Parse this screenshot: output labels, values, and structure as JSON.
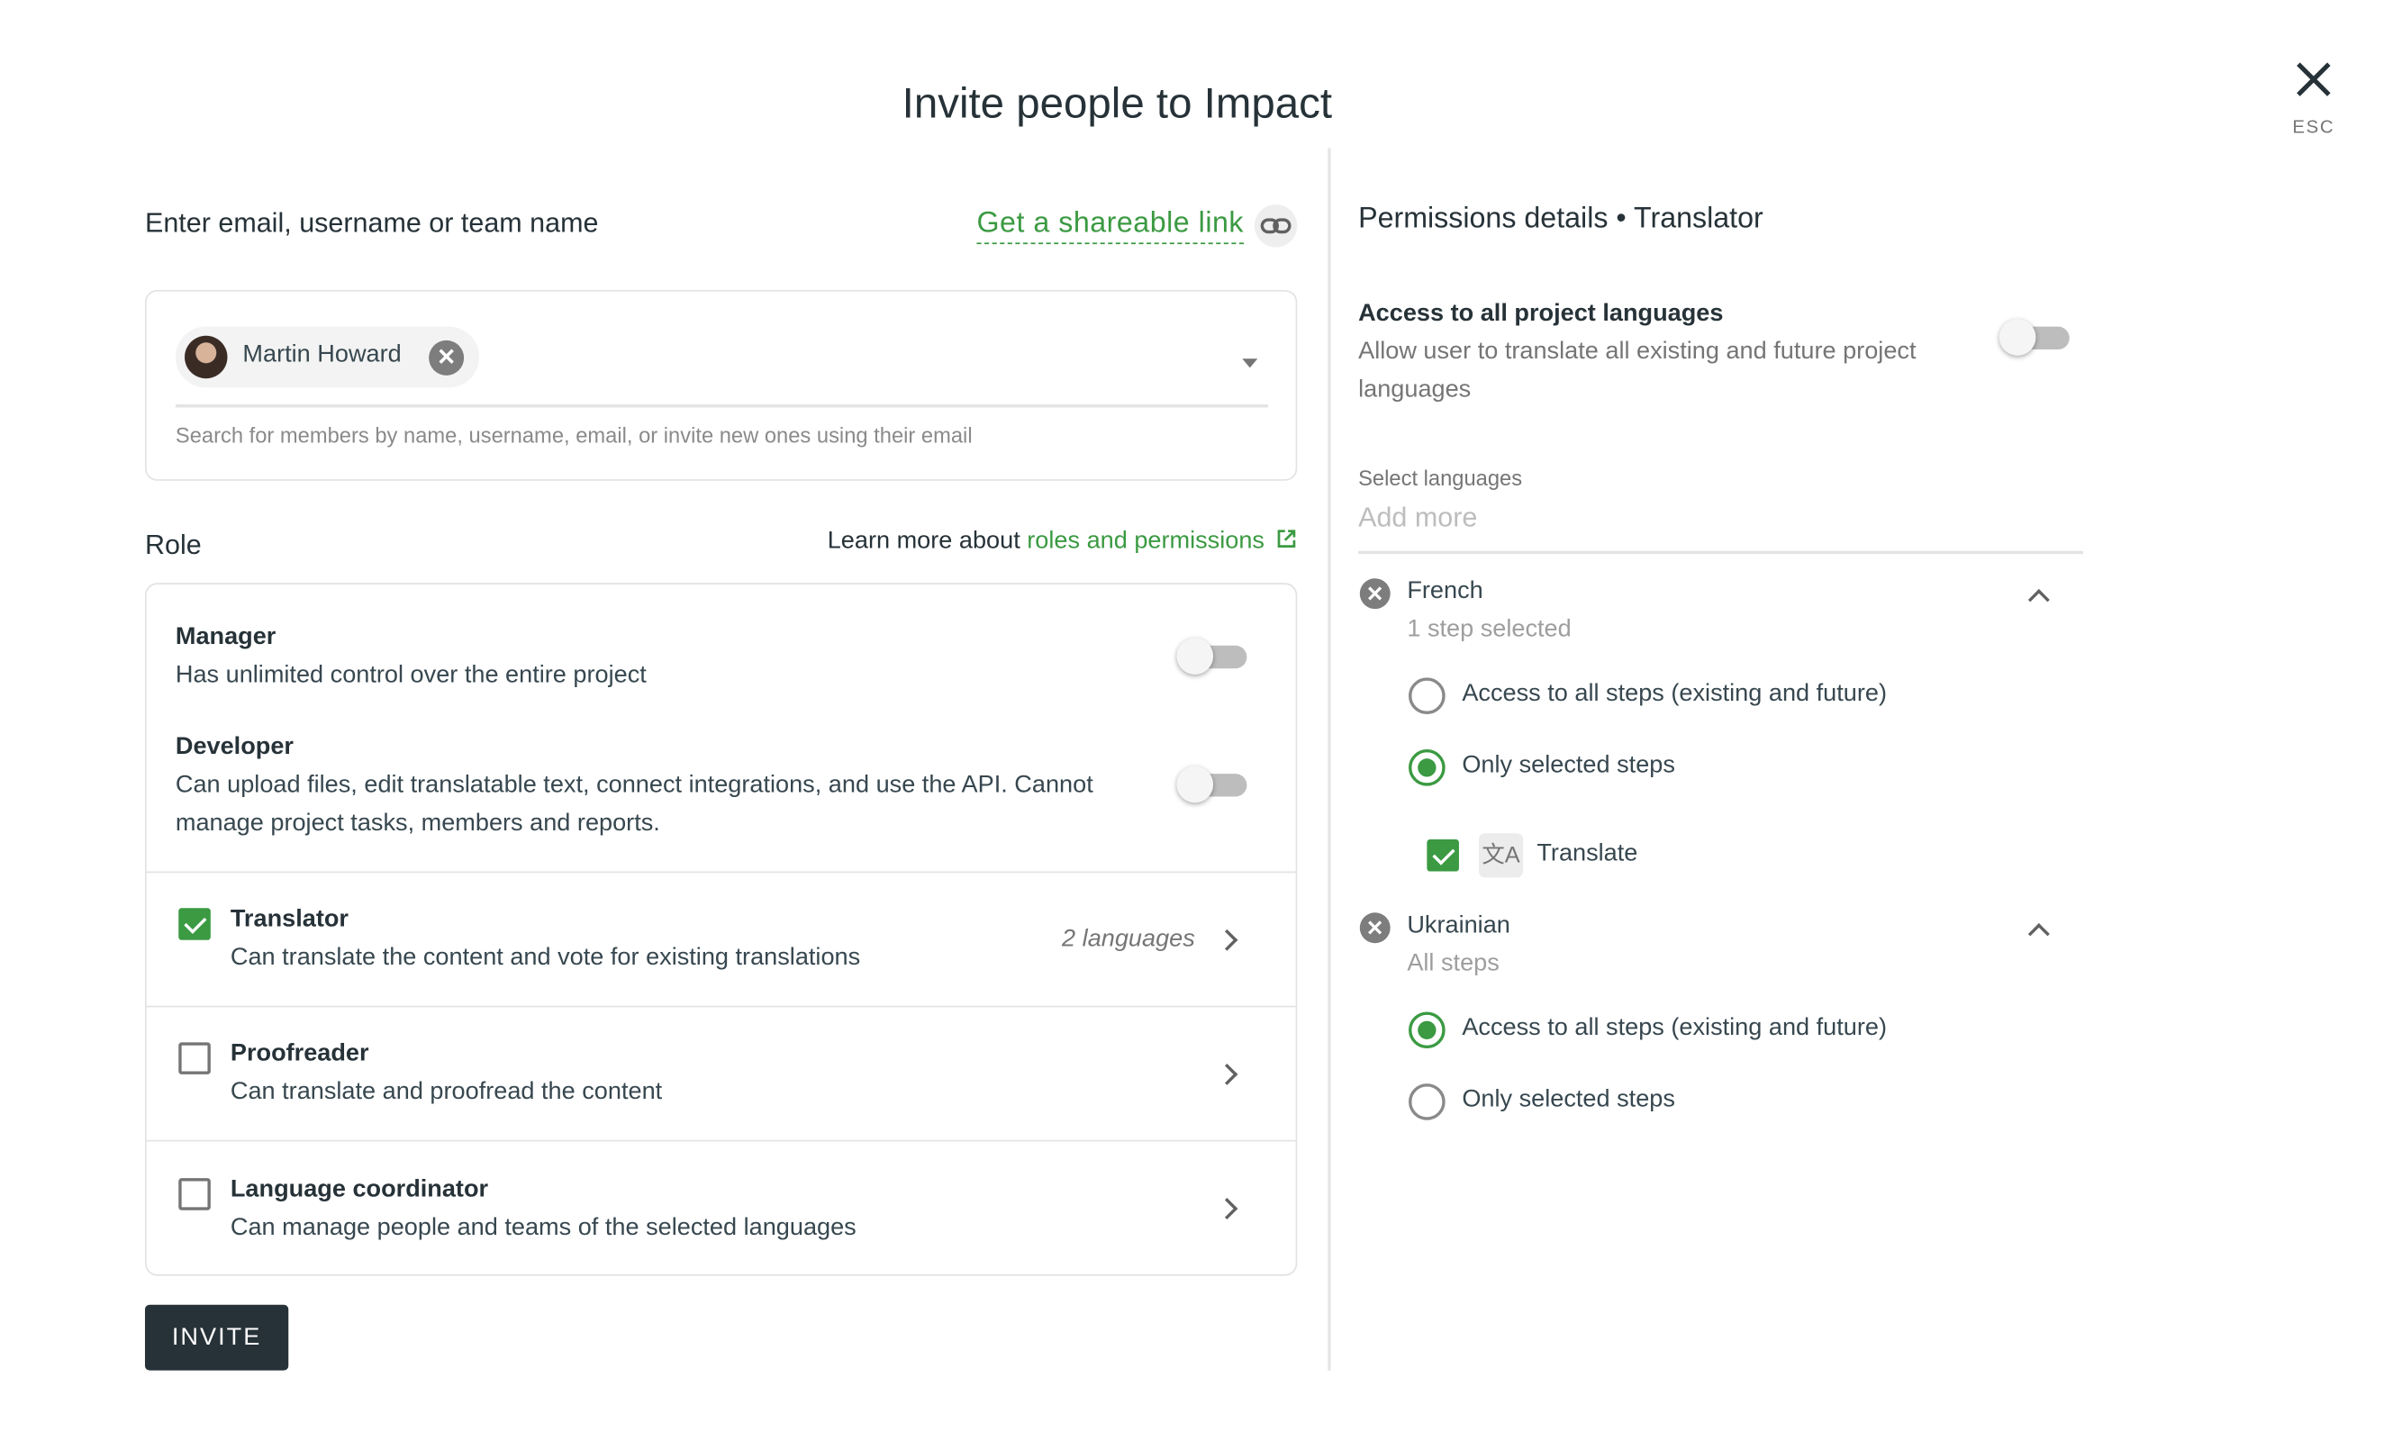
{
  "dialog": {
    "title": "Invite people to Impact",
    "close_label": "ESC"
  },
  "invite": {
    "label": "Enter email, username or team name",
    "share_link": "Get a shareable link",
    "chip_name": "Martin Howard",
    "helper": "Search for members by name, username, email, or invite new ones using their email"
  },
  "role": {
    "label": "Role",
    "learn_prefix": "Learn more about ",
    "learn_link": "roles and permissions",
    "items": [
      {
        "title": "Manager",
        "desc": "Has unlimited control over the entire project",
        "enabled": false
      },
      {
        "title": "Developer",
        "desc1": "Can upload files, edit translatable text, connect integrations, and use the API. Cannot",
        "desc2": "manage project tasks, members and reports.",
        "enabled": false
      },
      {
        "title": "Translator",
        "desc": "Can translate the content and vote for existing translations",
        "checked": true,
        "meta": "2 languages"
      },
      {
        "title": "Proofreader",
        "desc": "Can translate and proofread the content",
        "checked": false
      },
      {
        "title": "Language coordinator",
        "desc": "Can manage people and teams of the selected languages",
        "checked": false
      }
    ]
  },
  "invite_button": "INVITE",
  "permissions": {
    "title": "Permissions details • Translator",
    "all_lang_title": "Access to all project languages",
    "all_lang_desc1": "Allow user to translate all existing and future project",
    "all_lang_desc2": "languages",
    "all_lang_enabled": false,
    "select_label": "Select languages",
    "add_more_placeholder": "Add more",
    "languages": [
      {
        "name": "French",
        "summary": "1 step selected",
        "option_all": "Access to all steps (existing and future)",
        "option_selected": "Only selected steps",
        "selected_option": "selected",
        "steps": [
          {
            "label": "Translate",
            "checked": true
          }
        ]
      },
      {
        "name": "Ukrainian",
        "summary": "All steps",
        "option_all": "Access to all steps (existing and future)",
        "option_selected": "Only selected steps",
        "selected_option": "all"
      }
    ]
  },
  "colors": {
    "accent": "#3b9a42",
    "button": "#263238"
  }
}
